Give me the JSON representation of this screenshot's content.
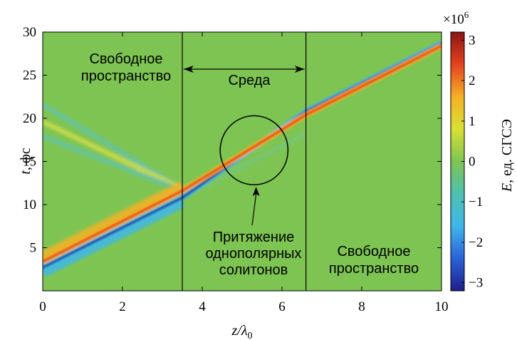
{
  "chart_data": {
    "type": "heatmap",
    "title": "",
    "xlabel": "z/λ",
    "xlabel_sub": "0",
    "ylabel_main": "t",
    "ylabel_unit": ", фс",
    "xlim": [
      0,
      10
    ],
    "ylim": [
      0,
      30
    ],
    "x_ticks": [
      0,
      2,
      4,
      6,
      8,
      10
    ],
    "y_ticks": [
      5,
      10,
      15,
      20,
      25,
      30
    ],
    "grid": false,
    "medium_boundaries_z": [
      3.5,
      6.6
    ],
    "colorbar": {
      "label_main": "E",
      "label_unit": ", ед. СГСЭ",
      "multiplier_base": "×10",
      "multiplier_exp": "6",
      "range": [
        -3.2,
        3.2
      ],
      "ticks": [
        3,
        2,
        1,
        0,
        -1,
        -2,
        -3
      ],
      "tick_labels": [
        "3",
        "2",
        "1",
        "0",
        "−1",
        "−2",
        "−3"
      ],
      "colormap": [
        "#1e1f8a",
        "#2a62d8",
        "#3fb7ea",
        "#4fc0b0",
        "#7ec452",
        "#d9e035",
        "#f4b125",
        "#e5421f",
        "#8b1414"
      ]
    },
    "features": [
      {
        "name": "soliton_positive",
        "polarity": "positive",
        "points": [
          [
            0,
            3.4
          ],
          [
            3.5,
            11.6
          ],
          [
            6.6,
            20.4
          ],
          [
            10,
            28.4
          ]
        ]
      },
      {
        "name": "soliton_negative",
        "polarity": "negative",
        "points": [
          [
            0,
            2.7
          ],
          [
            3.5,
            10.8
          ],
          [
            6.6,
            20.8
          ],
          [
            10,
            28.7
          ]
        ]
      }
    ],
    "circle": {
      "center": [
        5.3,
        16.3
      ],
      "rx": 0.85,
      "ry": 4.0
    },
    "annotations": {
      "free_space_left_line1": "Свободное",
      "free_space_left_line2": "пространство",
      "medium": "Среда",
      "attraction_line1": "Притяжение",
      "attraction_line2": "однополярных",
      "attraction_line3": "солитонов",
      "free_space_right_line1": "Свободное",
      "free_space_right_line2": "пространство"
    }
  }
}
